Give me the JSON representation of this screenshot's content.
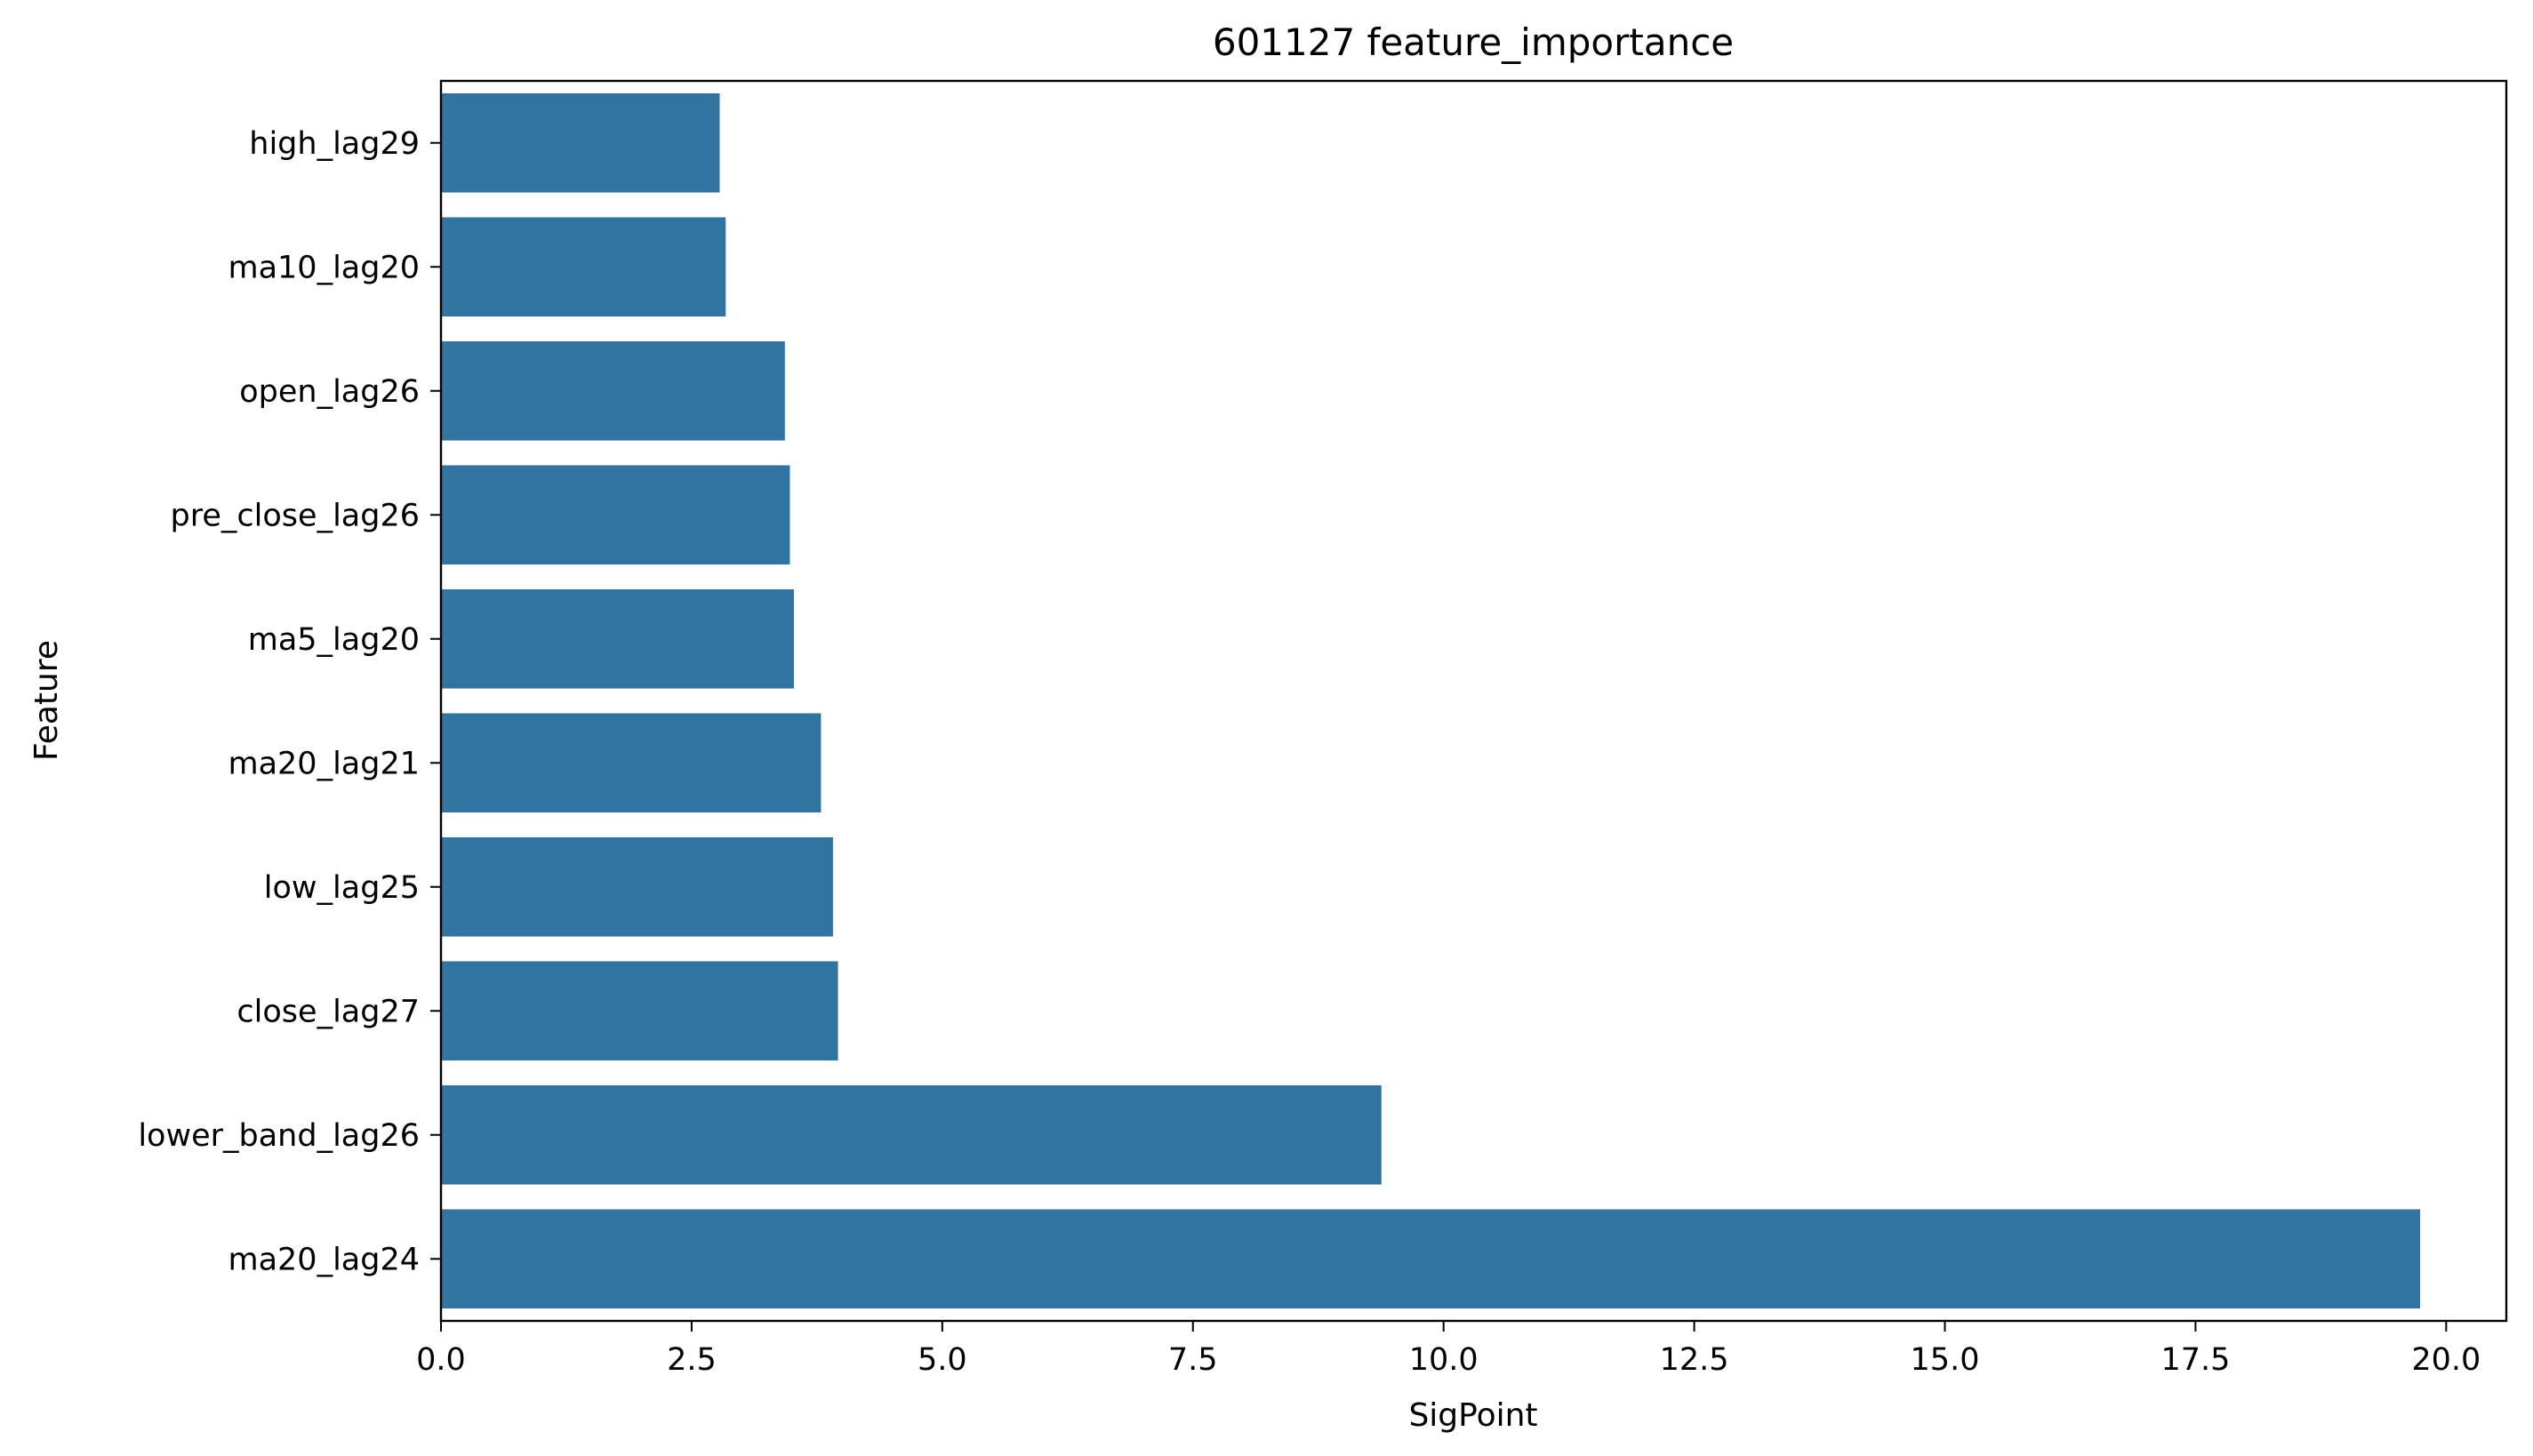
{
  "chart_data": {
    "type": "bar",
    "orientation": "horizontal",
    "title": "601127 feature_importance",
    "xlabel": "SigPoint",
    "ylabel": "Feature",
    "categories": [
      "high_lag29",
      "ma10_lag20",
      "open_lag26",
      "pre_close_lag26",
      "ma5_lag20",
      "ma20_lag21",
      "low_lag25",
      "close_lag27",
      "lower_band_lag26",
      "ma20_lag24"
    ],
    "values": [
      2.78,
      2.84,
      3.43,
      3.48,
      3.52,
      3.79,
      3.91,
      3.96,
      9.38,
      19.74
    ],
    "xlim": [
      0,
      20.6
    ],
    "xticks": [
      0.0,
      2.5,
      5.0,
      7.5,
      10.0,
      12.5,
      15.0,
      17.5,
      20.0
    ],
    "xtick_labels": [
      "0.0",
      "2.5",
      "5.0",
      "7.5",
      "10.0",
      "12.5",
      "15.0",
      "17.5",
      "20.0"
    ],
    "grid": false,
    "bar_color": "#3274a1"
  }
}
